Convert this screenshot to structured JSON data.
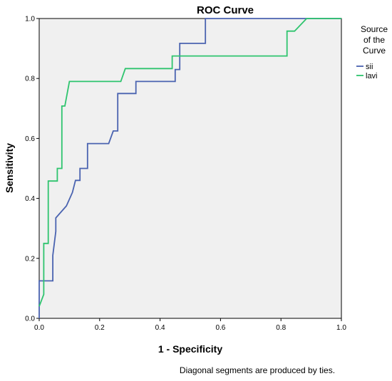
{
  "chart_data": {
    "type": "line",
    "title": "ROC Curve",
    "xlabel": "1 - Specificity",
    "ylabel": "Sensitivity",
    "xlim": [
      0,
      1
    ],
    "ylim": [
      0,
      1
    ],
    "xticks": [
      "0.0",
      "0.2",
      "0.4",
      "0.6",
      "0.8",
      "1.0"
    ],
    "yticks": [
      "0.0",
      "0.2",
      "0.4",
      "0.6",
      "0.8",
      "1.0"
    ],
    "grid": false,
    "background_color": "#f0f0f0",
    "legend": {
      "title_lines": [
        "Source",
        "of the",
        "Curve"
      ],
      "placement": "right"
    },
    "footnote": "Diagonal segments are produced by ties.",
    "series": [
      {
        "name": "sii",
        "color": "#4a63b0",
        "points": [
          [
            0,
            0
          ],
          [
            0,
            0.125
          ],
          [
            0.045,
            0.125
          ],
          [
            0.045,
            0.21
          ],
          [
            0.055,
            0.29
          ],
          [
            0.055,
            0.335
          ],
          [
            0.09,
            0.375
          ],
          [
            0.11,
            0.42
          ],
          [
            0.12,
            0.46
          ],
          [
            0.135,
            0.46
          ],
          [
            0.135,
            0.5
          ],
          [
            0.16,
            0.5
          ],
          [
            0.16,
            0.583
          ],
          [
            0.23,
            0.583
          ],
          [
            0.245,
            0.625
          ],
          [
            0.26,
            0.625
          ],
          [
            0.26,
            0.75
          ],
          [
            0.32,
            0.75
          ],
          [
            0.32,
            0.79
          ],
          [
            0.45,
            0.79
          ],
          [
            0.45,
            0.83
          ],
          [
            0.465,
            0.83
          ],
          [
            0.465,
            0.917
          ],
          [
            0.55,
            0.917
          ],
          [
            0.55,
            1.0
          ],
          [
            1.0,
            1.0
          ]
        ]
      },
      {
        "name": "lavi",
        "color": "#2ec46e",
        "points": [
          [
            0,
            0.04
          ],
          [
            0.015,
            0.08
          ],
          [
            0.015,
            0.25
          ],
          [
            0.03,
            0.25
          ],
          [
            0.03,
            0.458
          ],
          [
            0.06,
            0.458
          ],
          [
            0.06,
            0.5
          ],
          [
            0.075,
            0.5
          ],
          [
            0.075,
            0.708
          ],
          [
            0.085,
            0.708
          ],
          [
            0.1,
            0.79
          ],
          [
            0.27,
            0.79
          ],
          [
            0.285,
            0.833
          ],
          [
            0.44,
            0.833
          ],
          [
            0.44,
            0.875
          ],
          [
            0.82,
            0.875
          ],
          [
            0.82,
            0.958
          ],
          [
            0.845,
            0.958
          ],
          [
            0.885,
            1.0
          ],
          [
            1.0,
            1.0
          ]
        ]
      }
    ]
  }
}
